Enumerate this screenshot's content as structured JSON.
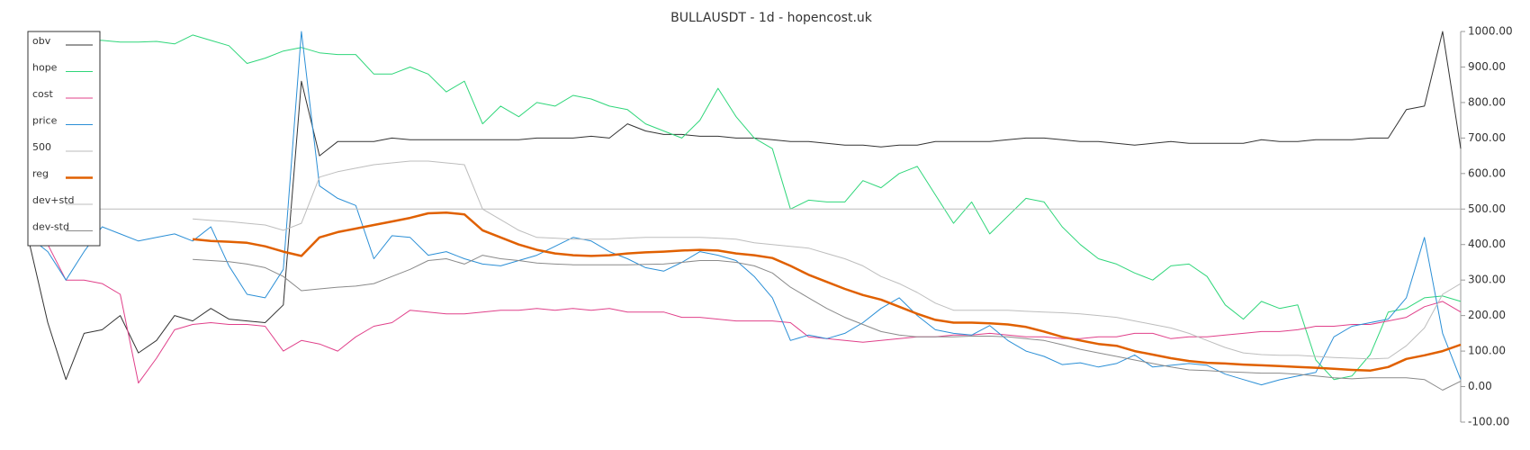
{
  "chart_data": {
    "type": "line",
    "title": "BULLAUSDT - 1d - hopencost.uk",
    "ylim": [
      -100,
      1000
    ],
    "yticks": [
      {
        "value": 1000,
        "label": "1000.00"
      },
      {
        "value": 900,
        "label": "900.00"
      },
      {
        "value": 800,
        "label": "800.00"
      },
      {
        "value": 700,
        "label": "700.00"
      },
      {
        "value": 600,
        "label": "600.00"
      },
      {
        "value": 500,
        "label": "500.00"
      },
      {
        "value": 400,
        "label": "400.00"
      },
      {
        "value": 300,
        "label": "300.00"
      },
      {
        "value": 200,
        "label": "200.00"
      },
      {
        "value": 100,
        "label": "100.00"
      },
      {
        "value": 0,
        "label": "0.00"
      },
      {
        "value": -100,
        "label": "-100.00"
      }
    ],
    "legend": "upper-left",
    "series": [
      {
        "name": "obv",
        "color": "#333333",
        "width": 1,
        "values": [
          400,
          180,
          20,
          150,
          160,
          200,
          95,
          130,
          200,
          185,
          220,
          190,
          185,
          180,
          230,
          860,
          650,
          690,
          690,
          690,
          700,
          695,
          695,
          695,
          695,
          695,
          695,
          695,
          700,
          700,
          700,
          705,
          700,
          740,
          720,
          710,
          710,
          705,
          705,
          700,
          700,
          695,
          690,
          690,
          685,
          680,
          680,
          675,
          680,
          680,
          690,
          690,
          690,
          690,
          695,
          700,
          700,
          695,
          690,
          690,
          685,
          680,
          685,
          690,
          685,
          685,
          685,
          685,
          695,
          690,
          690,
          695,
          695,
          695,
          700,
          700,
          780,
          790,
          1000,
          670
        ]
      },
      {
        "name": "hope",
        "color": "#2fd67a",
        "width": 1,
        "values": [
          975,
          975,
          975,
          975,
          975,
          970,
          970,
          972,
          965,
          990,
          975,
          960,
          910,
          925,
          945,
          955,
          940,
          935,
          935,
          880,
          880,
          900,
          880,
          830,
          860,
          740,
          790,
          760,
          800,
          790,
          820,
          810,
          790,
          780,
          740,
          720,
          700,
          750,
          840,
          760,
          700,
          670,
          500,
          525,
          520,
          520,
          580,
          560,
          600,
          620,
          540,
          460,
          520,
          430,
          480,
          530,
          520,
          450,
          400,
          360,
          345,
          320,
          300,
          340,
          345,
          310,
          230,
          190,
          240,
          220,
          230,
          75,
          20,
          30,
          90,
          210,
          220,
          250,
          255,
          240
        ]
      },
      {
        "name": "cost",
        "color": "#e0408a",
        "width": 1,
        "values": [
          450,
          400,
          300,
          300,
          290,
          260,
          10,
          80,
          160,
          175,
          180,
          175,
          175,
          170,
          100,
          130,
          120,
          100,
          140,
          170,
          180,
          215,
          210,
          205,
          205,
          210,
          215,
          215,
          220,
          215,
          220,
          215,
          220,
          210,
          210,
          210,
          195,
          195,
          190,
          185,
          185,
          185,
          180,
          140,
          135,
          130,
          125,
          130,
          135,
          140,
          140,
          145,
          145,
          150,
          145,
          140,
          140,
          135,
          135,
          140,
          140,
          150,
          150,
          135,
          140,
          140,
          145,
          150,
          155,
          155,
          160,
          170,
          170,
          175,
          175,
          185,
          195,
          225,
          240,
          210
        ]
      },
      {
        "name": "price",
        "color": "#2b8fd6",
        "width": 1,
        "values": [
          420,
          380,
          300,
          380,
          450,
          430,
          410,
          420,
          430,
          410,
          450,
          340,
          260,
          250,
          330,
          1000,
          565,
          530,
          510,
          360,
          425,
          420,
          370,
          380,
          360,
          345,
          340,
          355,
          370,
          395,
          420,
          410,
          380,
          360,
          335,
          325,
          350,
          380,
          370,
          355,
          310,
          250,
          130,
          145,
          135,
          150,
          180,
          220,
          250,
          200,
          160,
          150,
          145,
          172,
          130,
          100,
          85,
          62,
          67,
          55,
          65,
          89,
          55,
          60,
          65,
          60,
          35,
          20,
          5,
          19,
          30,
          40,
          140,
          170,
          180,
          190,
          250,
          420,
          150,
          20
        ]
      },
      {
        "name": "500",
        "color": "#bbbbbb",
        "width": 1,
        "values": [
          500,
          500,
          500,
          500,
          500,
          500,
          500,
          500,
          500,
          500,
          500,
          500,
          500,
          500,
          500,
          500,
          500,
          500,
          500,
          500,
          500,
          500,
          500,
          500,
          500,
          500,
          500,
          500,
          500,
          500,
          500,
          500,
          500,
          500,
          500,
          500,
          500,
          500,
          500,
          500,
          500,
          500,
          500,
          500,
          500,
          500,
          500,
          500,
          500,
          500,
          500,
          500,
          500,
          500,
          500,
          500,
          500,
          500,
          500,
          500,
          500,
          500,
          500,
          500,
          500,
          500,
          500,
          500,
          500,
          500,
          500,
          500,
          500,
          500,
          500,
          500,
          500,
          500,
          500,
          500
        ]
      },
      {
        "name": "reg",
        "color": "#e06000",
        "width": 2.5,
        "values": [
          null,
          null,
          null,
          null,
          null,
          null,
          null,
          null,
          null,
          415,
          410,
          408,
          405,
          395,
          380,
          368,
          420,
          435,
          445,
          455,
          465,
          475,
          488,
          490,
          485,
          440,
          420,
          400,
          385,
          375,
          370,
          368,
          370,
          375,
          378,
          380,
          383,
          385,
          383,
          375,
          370,
          362,
          340,
          315,
          295,
          275,
          258,
          245,
          225,
          205,
          188,
          180,
          180,
          178,
          175,
          168,
          155,
          140,
          130,
          120,
          115,
          100,
          90,
          80,
          72,
          67,
          65,
          62,
          60,
          58,
          55,
          53,
          50,
          47,
          45,
          55,
          78,
          88,
          100,
          118
        ]
      },
      {
        "name": "dev+std",
        "color": "#bdbdbd",
        "width": 1,
        "values": [
          null,
          null,
          null,
          null,
          null,
          null,
          null,
          null,
          null,
          472,
          468,
          465,
          460,
          455,
          440,
          460,
          590,
          605,
          615,
          625,
          630,
          635,
          635,
          630,
          625,
          500,
          470,
          440,
          420,
          418,
          415,
          415,
          415,
          418,
          420,
          420,
          420,
          420,
          418,
          415,
          405,
          400,
          395,
          390,
          375,
          360,
          340,
          310,
          290,
          265,
          235,
          215,
          215,
          215,
          215,
          212,
          210,
          208,
          205,
          200,
          195,
          185,
          175,
          165,
          150,
          130,
          110,
          95,
          90,
          88,
          88,
          85,
          82,
          80,
          78,
          80,
          115,
          165,
          260,
          290
        ]
      },
      {
        "name": "dev-std",
        "color": "#8a8a8a",
        "width": 1,
        "values": [
          null,
          null,
          null,
          null,
          null,
          null,
          null,
          null,
          null,
          358,
          355,
          352,
          345,
          335,
          310,
          270,
          275,
          280,
          283,
          290,
          310,
          330,
          355,
          360,
          345,
          370,
          360,
          355,
          348,
          345,
          343,
          343,
          343,
          343,
          344,
          345,
          350,
          355,
          355,
          350,
          340,
          320,
          280,
          250,
          220,
          195,
          175,
          155,
          145,
          140,
          140,
          140,
          142,
          142,
          140,
          135,
          130,
          118,
          105,
          95,
          85,
          75,
          65,
          55,
          47,
          45,
          42,
          40,
          38,
          38,
          35,
          30,
          25,
          22,
          25,
          25,
          25,
          20,
          -10,
          15
        ]
      }
    ]
  }
}
